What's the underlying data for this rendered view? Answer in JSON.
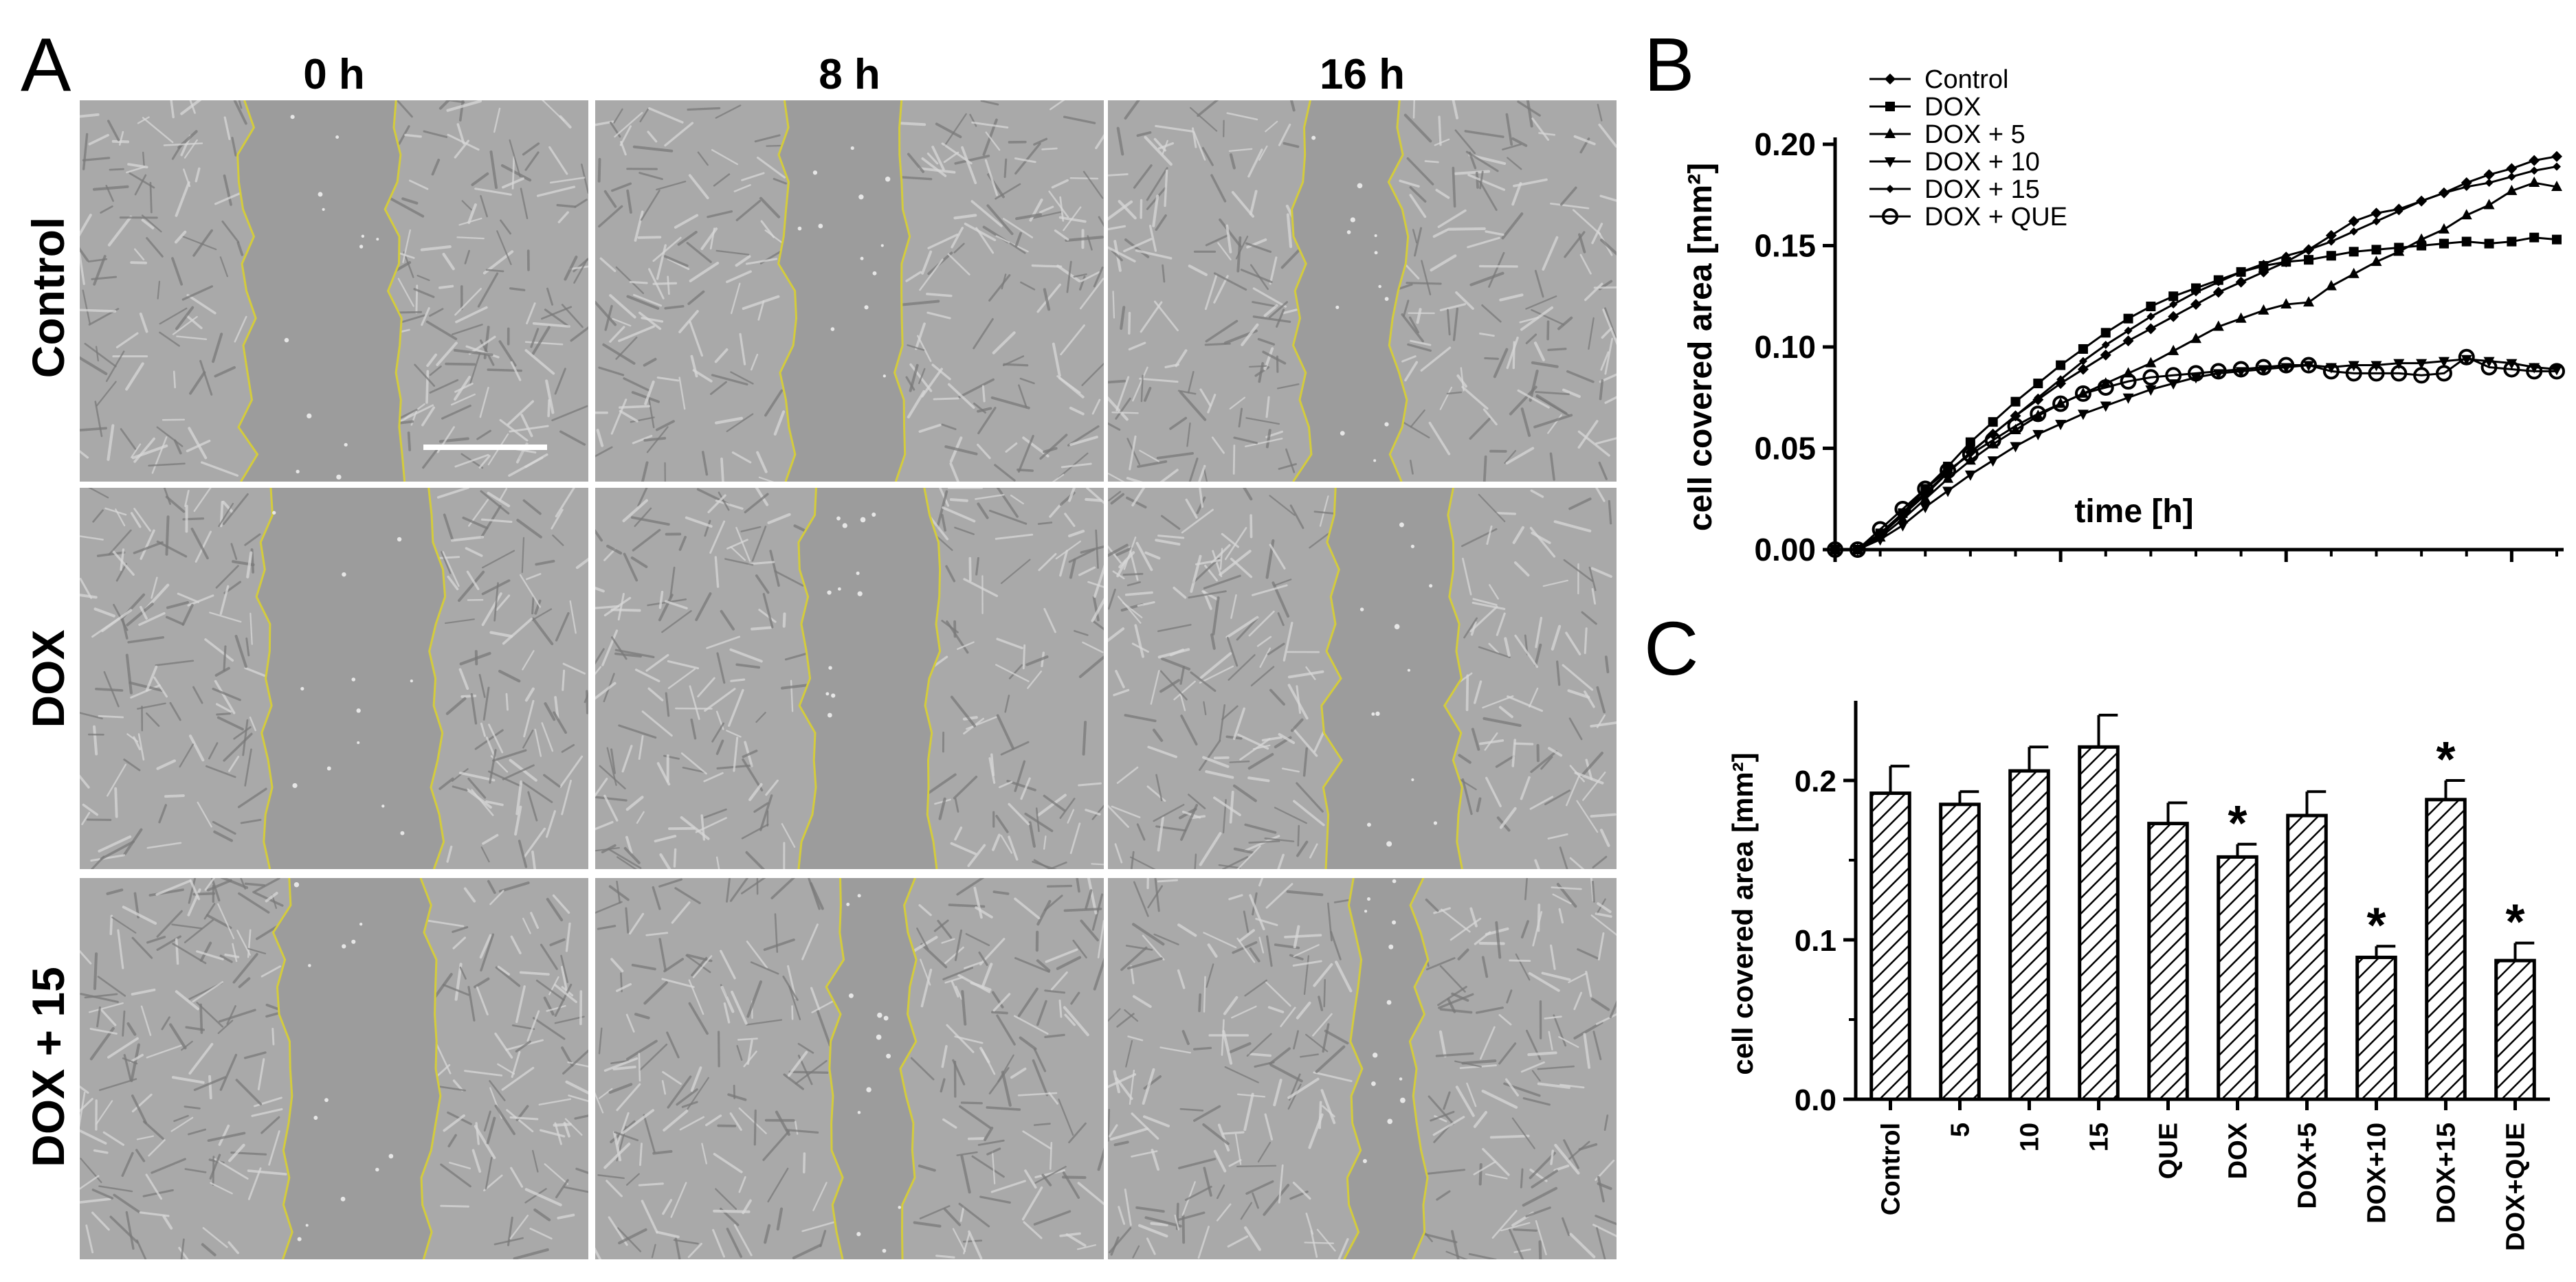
{
  "panelA": {
    "letter": "A",
    "columns": [
      "0 h",
      "8 h",
      "16 h"
    ],
    "rows": [
      "Control",
      "DOX",
      "DOX + 15"
    ]
  },
  "panelB": {
    "letter": "B",
    "chart_data": {
      "type": "line",
      "xlabel": "time [h]",
      "ylabel": "cell covered area [mm²]",
      "xlim": [
        0,
        16
      ],
      "ylim": [
        0,
        0.2
      ],
      "xticks": [
        "0",
        "5",
        "10",
        "15"
      ],
      "yticks": [
        "0.00",
        "0.05",
        "0.10",
        "0.15",
        "0.20"
      ],
      "legend_position": "top-left",
      "x": [
        0,
        0.5,
        1,
        1.5,
        2,
        2.5,
        3,
        3.5,
        4,
        4.5,
        5,
        5.5,
        6,
        6.5,
        7,
        7.5,
        8,
        8.5,
        9,
        9.5,
        10,
        10.5,
        11,
        11.5,
        12,
        12.5,
        13,
        13.5,
        14,
        14.5,
        15,
        15.5,
        16
      ],
      "series": [
        {
          "name": "Control",
          "marker": "diamond",
          "values": [
            0,
            0,
            0.008,
            0.018,
            0.028,
            0.038,
            0.048,
            0.057,
            0.066,
            0.074,
            0.082,
            0.089,
            0.096,
            0.103,
            0.109,
            0.115,
            0.121,
            0.127,
            0.132,
            0.137,
            0.142,
            0.148,
            0.155,
            0.162,
            0.166,
            0.168,
            0.172,
            0.176,
            0.181,
            0.185,
            0.188,
            0.192,
            0.194
          ]
        },
        {
          "name": "DOX",
          "marker": "square",
          "values": [
            0,
            0,
            0.008,
            0.018,
            0.03,
            0.041,
            0.053,
            0.063,
            0.073,
            0.082,
            0.091,
            0.099,
            0.107,
            0.114,
            0.12,
            0.125,
            0.129,
            0.133,
            0.137,
            0.14,
            0.142,
            0.143,
            0.145,
            0.147,
            0.148,
            0.149,
            0.15,
            0.151,
            0.152,
            0.151,
            0.152,
            0.154,
            0.153
          ]
        },
        {
          "name": "DOX + 5",
          "marker": "triangle-up",
          "values": [
            0,
            0,
            0.006,
            0.015,
            0.025,
            0.035,
            0.044,
            0.052,
            0.059,
            0.066,
            0.072,
            0.077,
            0.082,
            0.087,
            0.092,
            0.098,
            0.104,
            0.11,
            0.114,
            0.118,
            0.121,
            0.122,
            0.13,
            0.136,
            0.142,
            0.147,
            0.153,
            0.158,
            0.165,
            0.17,
            0.177,
            0.181,
            0.179
          ]
        },
        {
          "name": "DOX + 10",
          "marker": "triangle-down",
          "values": [
            0,
            0,
            0.005,
            0.012,
            0.021,
            0.029,
            0.037,
            0.044,
            0.051,
            0.057,
            0.062,
            0.067,
            0.071,
            0.075,
            0.079,
            0.082,
            0.085,
            0.087,
            0.088,
            0.089,
            0.09,
            0.091,
            0.09,
            0.091,
            0.091,
            0.092,
            0.092,
            0.093,
            0.094,
            0.093,
            0.092,
            0.09,
            0.089
          ]
        },
        {
          "name": "DOX + 15",
          "marker": "diamond-small",
          "values": [
            0,
            0,
            0.007,
            0.017,
            0.027,
            0.038,
            0.048,
            0.057,
            0.066,
            0.075,
            0.084,
            0.093,
            0.101,
            0.108,
            0.115,
            0.121,
            0.127,
            0.132,
            0.137,
            0.141,
            0.145,
            0.148,
            0.152,
            0.157,
            0.162,
            0.167,
            0.172,
            0.176,
            0.179,
            0.181,
            0.184,
            0.187,
            0.189
          ]
        },
        {
          "name": "DOX + QUE",
          "marker": "circle",
          "values": [
            0,
            0,
            0.01,
            0.02,
            0.03,
            0.039,
            0.047,
            0.054,
            0.061,
            0.067,
            0.072,
            0.077,
            0.08,
            0.083,
            0.085,
            0.086,
            0.087,
            0.088,
            0.089,
            0.09,
            0.091,
            0.091,
            0.088,
            0.087,
            0.087,
            0.087,
            0.086,
            0.087,
            0.095,
            0.09,
            0.089,
            0.088,
            0.088
          ]
        }
      ]
    }
  },
  "panelC": {
    "letter": "C",
    "chart_data": {
      "type": "bar",
      "ylabel": "cell covered area [mm²]",
      "ylim": [
        0,
        0.25
      ],
      "yticks": [
        "0.0",
        "0.1",
        "0.2"
      ],
      "categories": [
        "Control",
        "5",
        "10",
        "15",
        "QUE",
        "DOX",
        "DOX+5",
        "DOX+10",
        "DOX+15",
        "DOX+QUE"
      ],
      "values": [
        0.192,
        0.185,
        0.206,
        0.221,
        0.173,
        0.152,
        0.178,
        0.089,
        0.188,
        0.087
      ],
      "errors": [
        0.017,
        0.008,
        0.015,
        0.02,
        0.013,
        0.008,
        0.015,
        0.007,
        0.012,
        0.011
      ],
      "significance": [
        "",
        "",
        "",
        "",
        "",
        "*",
        "",
        "*",
        "*",
        "*"
      ],
      "fill": "diagonal-hatch"
    }
  }
}
